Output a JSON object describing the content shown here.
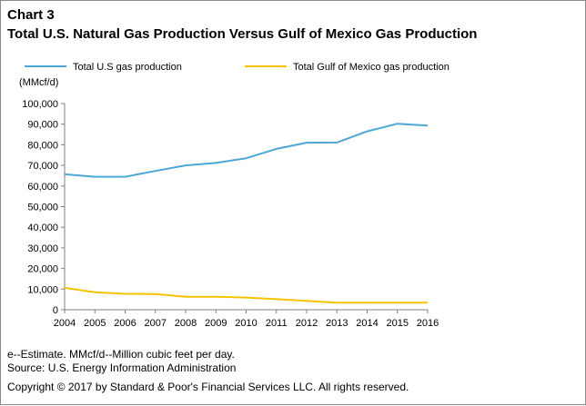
{
  "header": {
    "chart_number": "Chart 3",
    "title": "Total U.S. Natural Gas Production Versus Gulf of Mexico Gas Production"
  },
  "chart_data": {
    "type": "line",
    "ylabel": "(MMcf/d)",
    "x": [
      "2004",
      "2005",
      "2006",
      "2007",
      "2008",
      "2009",
      "2010",
      "2011",
      "2012",
      "2013",
      "2014",
      "2015",
      "2016"
    ],
    "y_ticks": [
      "0",
      "10,000",
      "20,000",
      "30,000",
      "40,000",
      "50,000",
      "60,000",
      "70,000",
      "80,000",
      "90,000",
      "100,000"
    ],
    "ylim": [
      0,
      100000
    ],
    "grid": false,
    "legend_position": "top",
    "series": [
      {
        "name": "Total U.S gas production",
        "color": "#4da6d6",
        "values": [
          65700,
          64500,
          64500,
          67300,
          70000,
          71200,
          73500,
          78000,
          81000,
          81100,
          86500,
          90200,
          89300
        ]
      },
      {
        "name": "Total Gulf of Mexico gas production",
        "color": "#f5c400",
        "values": [
          10600,
          8500,
          7700,
          7600,
          6300,
          6300,
          5900,
          5100,
          4300,
          3400,
          3400,
          3400,
          3400
        ]
      }
    ]
  },
  "footer": {
    "note": "e--Estimate. MMcf/d--Million cubic feet per day.",
    "source": "Source: U.S. Energy Information Administration",
    "copyright": "Copyright © 2017 by Standard & Poor's Financial Services LLC. All rights reserved."
  }
}
